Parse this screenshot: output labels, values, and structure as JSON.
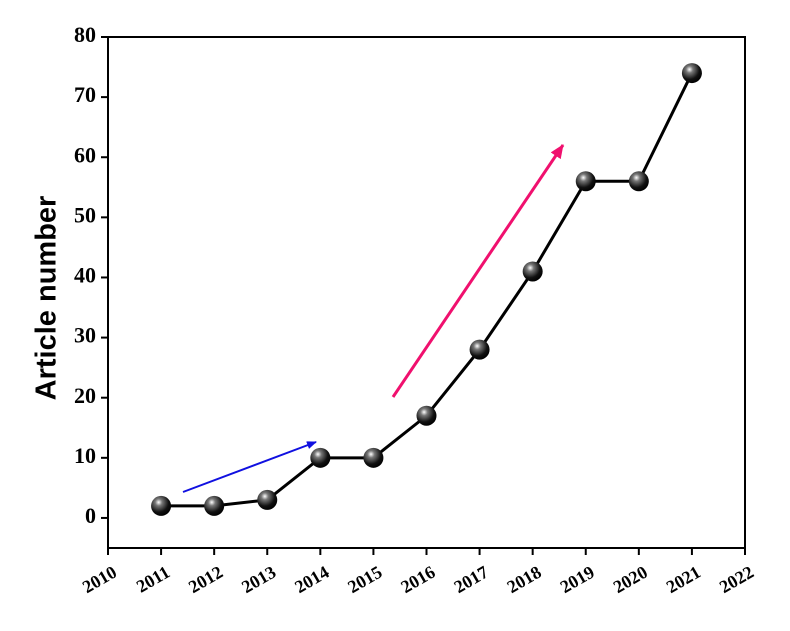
{
  "chart_data": {
    "type": "line",
    "y_label": "Article number",
    "x": [
      2011,
      2012,
      2013,
      2014,
      2015,
      2016,
      2017,
      2018,
      2019,
      2020,
      2021
    ],
    "values": [
      2,
      2,
      3,
      10,
      10,
      17,
      28,
      41,
      56,
      56,
      74
    ],
    "color": "#000000",
    "xlim": [
      2010,
      2022
    ],
    "xticks": [
      2010,
      2011,
      2012,
      2013,
      2014,
      2015,
      2016,
      2017,
      2018,
      2019,
      2020,
      2021,
      2022
    ],
    "ylim": [
      -5,
      80
    ],
    "yticks": [
      0,
      10,
      20,
      30,
      40,
      50,
      60,
      70,
      80
    ]
  }
}
